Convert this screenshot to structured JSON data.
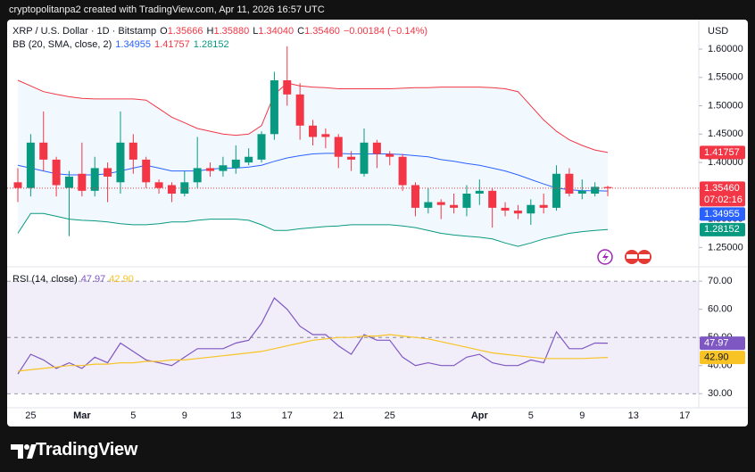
{
  "header": {
    "caption": "cryptopolitanpa2 created with TradingView.com, Apr 11, 2026 16:57 UTC"
  },
  "footer": {
    "brand": "TradingView"
  },
  "chart_data": [
    {
      "type": "candlestick",
      "symbol": "XRP / U.S. Dollar · 1D · Bitstamp",
      "ohlc_legend": [
        {
          "label": "O",
          "value": "1.35666"
        },
        {
          "label": "H",
          "value": "1.35880"
        },
        {
          "label": "L",
          "value": "1.34040"
        },
        {
          "label": "C",
          "value": "1.35460"
        }
      ],
      "change": "−0.00184 (−0.14%)",
      "currency": "USD",
      "indicator": "BB (20, SMA, close, 2)",
      "up_color": "#089981",
      "down_color": "#f23645",
      "categories": [
        null,
        "25",
        null,
        null,
        null,
        "Mar",
        null,
        null,
        null,
        "5",
        null,
        null,
        null,
        "9",
        null,
        null,
        null,
        "13",
        null,
        null,
        null,
        "17",
        null,
        null,
        null,
        "21",
        null,
        null,
        null,
        "25",
        null,
        null,
        null,
        null,
        null,
        null,
        "Apr",
        null,
        null,
        null,
        "5",
        null,
        null,
        null,
        "9",
        null,
        null,
        null,
        "13",
        null,
        null,
        null,
        "17"
      ],
      "open": [
        1.365,
        1.355,
        1.435,
        1.405,
        1.355,
        1.38,
        1.35,
        1.39,
        1.365,
        1.435,
        1.405,
        1.365,
        1.36,
        1.345,
        1.365,
        1.39,
        1.385,
        1.39,
        1.4,
        1.405,
        1.45,
        1.545,
        1.52,
        1.465,
        1.45,
        1.445,
        1.41,
        1.38,
        1.435,
        1.415,
        1.41,
        1.36,
        1.32,
        1.33,
        1.325,
        1.32,
        1.345,
        1.35,
        1.32,
        1.315,
        1.31,
        1.325,
        1.32,
        1.38,
        1.345,
        1.345,
        1.35666,
        null,
        null,
        null,
        null,
        null,
        null
      ],
      "high": [
        1.39,
        1.45,
        1.49,
        1.41,
        1.385,
        1.435,
        1.41,
        1.4,
        1.49,
        1.45,
        1.41,
        1.37,
        1.365,
        1.385,
        1.445,
        1.4,
        1.41,
        1.43,
        1.425,
        1.455,
        1.56,
        1.605,
        1.54,
        1.475,
        1.46,
        1.45,
        1.42,
        1.46,
        1.44,
        1.42,
        1.415,
        1.365,
        1.355,
        1.335,
        1.345,
        1.36,
        1.37,
        1.355,
        1.33,
        1.325,
        1.335,
        1.345,
        1.395,
        1.39,
        1.37,
        1.365,
        1.3588,
        null,
        null,
        null,
        null,
        null,
        null
      ],
      "low": [
        1.33,
        1.34,
        1.385,
        1.34,
        1.27,
        1.34,
        1.34,
        1.33,
        1.345,
        1.38,
        1.355,
        1.345,
        1.33,
        1.34,
        1.355,
        1.375,
        1.375,
        1.38,
        1.395,
        1.4,
        1.44,
        1.5,
        1.44,
        1.43,
        1.425,
        1.39,
        1.385,
        1.375,
        1.39,
        1.395,
        1.35,
        1.305,
        1.31,
        1.3,
        1.31,
        1.305,
        1.325,
        1.285,
        1.305,
        1.3,
        1.29,
        1.31,
        1.315,
        1.34,
        1.335,
        1.34,
        1.3404,
        null,
        null,
        null,
        null,
        null,
        null
      ],
      "close": [
        1.355,
        1.435,
        1.405,
        1.36,
        1.375,
        1.35,
        1.39,
        1.375,
        1.435,
        1.405,
        1.365,
        1.355,
        1.345,
        1.365,
        1.39,
        1.385,
        1.395,
        1.405,
        1.41,
        1.45,
        1.545,
        1.52,
        1.465,
        1.445,
        1.445,
        1.41,
        1.405,
        1.435,
        1.415,
        1.41,
        1.36,
        1.32,
        1.33,
        1.325,
        1.32,
        1.345,
        1.35,
        1.32,
        1.315,
        1.31,
        1.325,
        1.32,
        1.38,
        1.345,
        1.35,
        1.357,
        1.3546,
        null,
        null,
        null,
        null,
        null,
        null
      ],
      "close_tag": {
        "label": "1.35460",
        "countdown": "07:02:16"
      },
      "series": [
        {
          "color": "#2962ff",
          "last_label": "1.34955",
          "values": [
            1.395,
            1.39,
            1.385,
            1.38,
            1.378,
            1.378,
            1.378,
            1.38,
            1.385,
            1.39,
            1.395,
            1.39,
            1.385,
            1.385,
            1.385,
            1.388,
            1.39,
            1.39,
            1.392,
            1.395,
            1.402,
            1.408,
            1.412,
            1.415,
            1.416,
            1.416,
            1.415,
            1.415,
            1.415,
            1.415,
            1.414,
            1.412,
            1.41,
            1.405,
            1.402,
            1.398,
            1.395,
            1.39,
            1.385,
            1.378,
            1.37,
            1.362,
            1.355,
            1.352,
            1.35,
            1.35,
            1.34955,
            null,
            null,
            null,
            null,
            null,
            null
          ]
        },
        {
          "color": "#f23645",
          "last_label": "1.41757",
          "values": [
            1.545,
            1.535,
            1.525,
            1.52,
            1.516,
            1.513,
            1.512,
            1.512,
            1.512,
            1.512,
            1.51,
            1.495,
            1.48,
            1.47,
            1.46,
            1.455,
            1.45,
            1.448,
            1.45,
            1.465,
            1.52,
            1.54,
            1.535,
            1.533,
            1.532,
            1.53,
            1.53,
            1.53,
            1.53,
            1.53,
            1.531,
            1.532,
            1.532,
            1.533,
            1.533,
            1.533,
            1.533,
            1.532,
            1.53,
            1.525,
            1.5,
            1.475,
            1.455,
            1.44,
            1.43,
            1.422,
            1.41757,
            null,
            null,
            null,
            null,
            null,
            null
          ]
        },
        {
          "color": "#089981",
          "last_label": "1.28152",
          "values": [
            1.275,
            1.31,
            1.31,
            1.305,
            1.3,
            1.298,
            1.297,
            1.295,
            1.292,
            1.29,
            1.29,
            1.292,
            1.295,
            1.295,
            1.298,
            1.3,
            1.3,
            1.3,
            1.298,
            1.29,
            1.28,
            1.28,
            1.283,
            1.285,
            1.287,
            1.288,
            1.29,
            1.29,
            1.29,
            1.29,
            1.288,
            1.285,
            1.28,
            1.275,
            1.272,
            1.27,
            1.268,
            1.265,
            1.258,
            1.252,
            1.258,
            1.265,
            1.27,
            1.275,
            1.278,
            1.28,
            1.28152,
            null,
            null,
            null,
            null,
            null,
            null
          ]
        }
      ],
      "ylim": [
        1.2175,
        1.652
      ],
      "yticks": [
        {
          "value": 1.25,
          "label": "1.25000"
        },
        {
          "value": 1.3,
          "label": "1.30000"
        },
        {
          "value": 1.35,
          "label": "1.35000"
        },
        {
          "value": 1.4,
          "label": "1.40000"
        },
        {
          "value": 1.45,
          "label": "1.45000"
        },
        {
          "value": 1.5,
          "label": "1.50000"
        },
        {
          "value": 1.55,
          "label": "1.55000"
        },
        {
          "value": 1.6,
          "label": "1.60000"
        }
      ],
      "grid": false
    },
    {
      "type": "line",
      "title": "RSI (14, close)",
      "series": [
        {
          "color": "#7e57c2",
          "last_label": "47.97",
          "values": [
            37,
            44,
            42,
            39,
            41,
            39,
            43,
            41,
            48,
            45,
            42,
            41,
            40,
            43,
            46,
            46,
            46,
            48,
            49,
            55,
            64,
            60,
            54,
            51,
            51,
            47,
            44,
            51,
            49,
            49,
            43,
            40,
            41,
            40,
            40,
            43,
            44,
            41,
            40,
            40,
            42,
            41,
            52,
            46,
            46,
            48,
            47.97,
            null,
            null,
            null,
            null,
            null,
            null
          ]
        },
        {
          "color": "#f7c325",
          "last_label": "42.90",
          "values": [
            38,
            38.5,
            39,
            39.5,
            40,
            40,
            40.5,
            40.5,
            41,
            41,
            41.5,
            41.5,
            42,
            42,
            42.5,
            43,
            43.5,
            44,
            44.5,
            45,
            46,
            47,
            48,
            49,
            49.5,
            50,
            50,
            50.5,
            50.5,
            51,
            50.5,
            50,
            49.5,
            48.5,
            47.5,
            46.5,
            45.5,
            44.5,
            44,
            43.5,
            43,
            42.5,
            42.5,
            42.5,
            42.5,
            42.7,
            42.9,
            null,
            null,
            null,
            null,
            null,
            null
          ]
        }
      ],
      "band": [
        30,
        70
      ],
      "reference_lines": [
        70,
        50,
        30
      ],
      "ylim": [
        25,
        74.8
      ],
      "yticks": [
        {
          "value": 30,
          "label": "30.00"
        },
        {
          "value": 40,
          "label": "40.00"
        },
        {
          "value": 50,
          "label": "50.00"
        },
        {
          "value": 60,
          "label": "60.00"
        },
        {
          "value": 70,
          "label": "70.00"
        }
      ],
      "grid": false
    }
  ]
}
